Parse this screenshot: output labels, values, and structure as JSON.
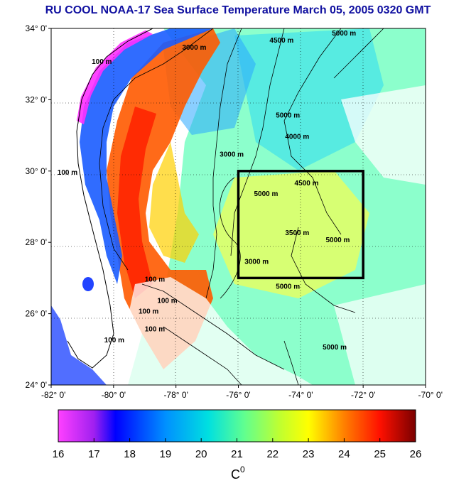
{
  "title": "RU COOL  NOAA-17 Sea Surface Temperature March 05, 2005 0320 GMT",
  "map": {
    "lat_ticks": [
      "34° 0'",
      "32° 0'",
      "30° 0'",
      "28° 0'",
      "26° 0'",
      "24° 0'"
    ],
    "lon_ticks": [
      "-82° 0'",
      "-80° 0'",
      "-78° 0'",
      "-76° 0'",
      "-74° 0'",
      "-72° 0'",
      "-70° 0'"
    ],
    "lat_range": [
      24,
      34
    ],
    "lon_range": [
      -82,
      -70
    ],
    "box": {
      "lon_min": -76,
      "lon_max": -72,
      "lat_min": 27,
      "lat_max": 30
    },
    "contour_labels": [
      {
        "text": "100 m",
        "lon": -80.7,
        "lat": 33.0
      },
      {
        "text": "100 m",
        "lon": -81.8,
        "lat": 29.9
      },
      {
        "text": "3000 m",
        "lon": -77.8,
        "lat": 33.4
      },
      {
        "text": "4500 m",
        "lon": -75.0,
        "lat": 33.6
      },
      {
        "text": "5000 m",
        "lon": -73.0,
        "lat": 33.8
      },
      {
        "text": "5000 m",
        "lon": -74.8,
        "lat": 31.5
      },
      {
        "text": "4000 m",
        "lon": -74.5,
        "lat": 30.9
      },
      {
        "text": "3000 m",
        "lon": -76.6,
        "lat": 30.4
      },
      {
        "text": "4500 m",
        "lon": -74.2,
        "lat": 29.6
      },
      {
        "text": "5000 m",
        "lon": -75.5,
        "lat": 29.3
      },
      {
        "text": "3500 m",
        "lon": -74.5,
        "lat": 28.2
      },
      {
        "text": "5000 m",
        "lon": -73.2,
        "lat": 28.0
      },
      {
        "text": "3000 m",
        "lon": -75.8,
        "lat": 27.4
      },
      {
        "text": "100 m",
        "lon": -79.0,
        "lat": 26.9
      },
      {
        "text": "100 m",
        "lon": -78.6,
        "lat": 26.3
      },
      {
        "text": "100 m",
        "lon": -79.2,
        "lat": 26.0
      },
      {
        "text": "100 m",
        "lon": -80.3,
        "lat": 25.2
      },
      {
        "text": "100 m",
        "lon": -79.0,
        "lat": 25.5
      },
      {
        "text": "5000 m",
        "lon": -74.8,
        "lat": 26.7
      },
      {
        "text": "5000 m",
        "lon": -73.3,
        "lat": 25.0
      }
    ]
  },
  "colorbar": {
    "ticks": [
      "16",
      "17",
      "18",
      "19",
      "20",
      "21",
      "22",
      "23",
      "24",
      "25",
      "26"
    ],
    "min": 16,
    "max": 26,
    "unit": "C",
    "unit_sup": "0",
    "colors": [
      "#ff40ff",
      "#0000ff",
      "#00c8ff",
      "#80ff80",
      "#ffff00",
      "#ff8000",
      "#ff0000",
      "#800000"
    ]
  },
  "colors": {
    "land": "#ffffff",
    "box": "#000000",
    "title": "#1010a0"
  }
}
